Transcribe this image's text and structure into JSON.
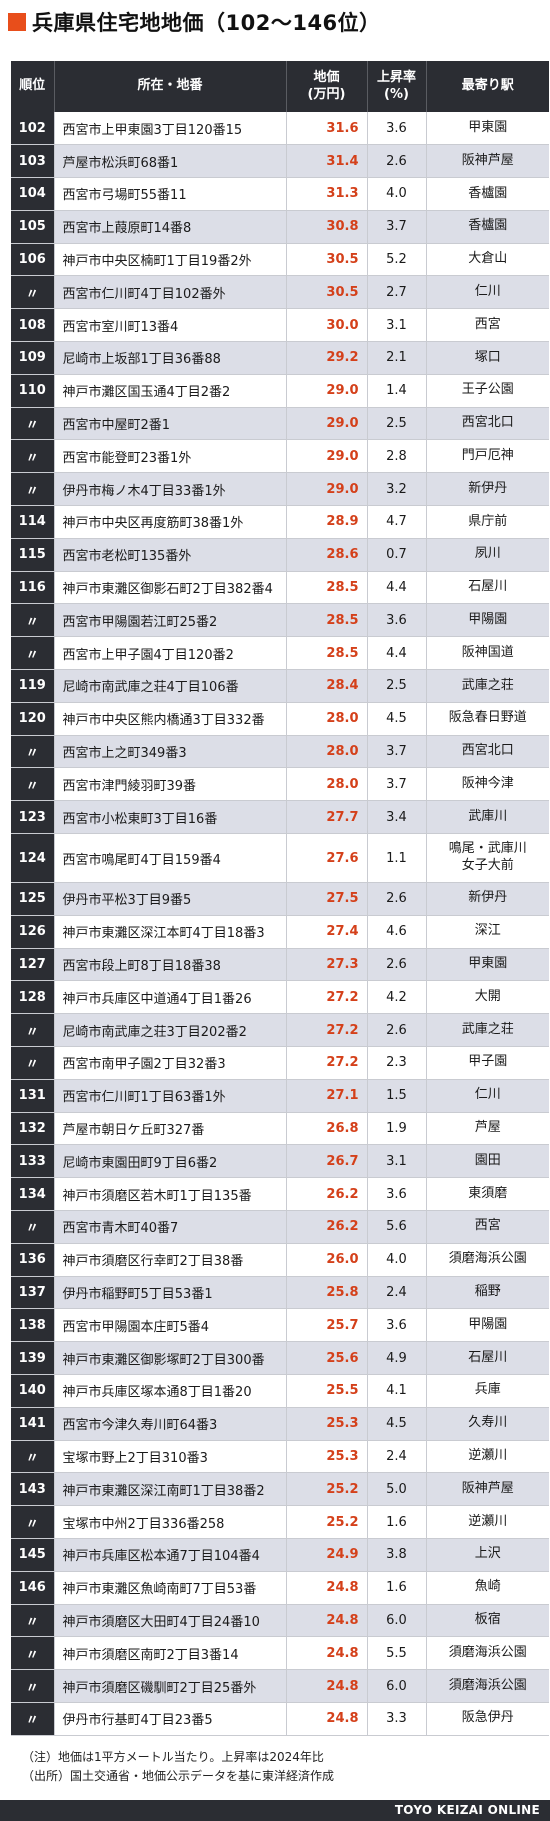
{
  "title": "兵庫県住宅地地価（102〜146位）",
  "header": {
    "rank": "順位",
    "address": "所在・地番",
    "price": "地価\n(万円)",
    "rate": "上昇率\n(%)",
    "station": "最寄り駅"
  },
  "rows": [
    {
      "rank": "102",
      "address": "西宮市上甲東園3丁目120番15",
      "price": "31.6",
      "rate": "3.6",
      "station": "甲東園"
    },
    {
      "rank": "103",
      "address": "芦屋市松浜町68番1",
      "price": "31.4",
      "rate": "2.6",
      "station": "阪神芦屋"
    },
    {
      "rank": "104",
      "address": "西宮市弓場町55番11",
      "price": "31.3",
      "rate": "4.0",
      "station": "香櫨園"
    },
    {
      "rank": "105",
      "address": "西宮市上葭原町14番8",
      "price": "30.8",
      "rate": "3.7",
      "station": "香櫨園"
    },
    {
      "rank": "106",
      "address": "神戸市中央区楠町1丁目19番2外",
      "price": "30.5",
      "rate": "5.2",
      "station": "大倉山"
    },
    {
      "rank": "〃",
      "address": "西宮市仁川町4丁目102番外",
      "price": "30.5",
      "rate": "2.7",
      "station": "仁川"
    },
    {
      "rank": "108",
      "address": "西宮市室川町13番4",
      "price": "30.0",
      "rate": "3.1",
      "station": "西宮"
    },
    {
      "rank": "109",
      "address": "尼崎市上坂部1丁目36番88",
      "price": "29.2",
      "rate": "2.1",
      "station": "塚口"
    },
    {
      "rank": "110",
      "address": "神戸市灘区国玉通4丁目2番2",
      "price": "29.0",
      "rate": "1.4",
      "station": "王子公園"
    },
    {
      "rank": "〃",
      "address": "西宮市中屋町2番1",
      "price": "29.0",
      "rate": "2.5",
      "station": "西宮北口"
    },
    {
      "rank": "〃",
      "address": "西宮市能登町23番1外",
      "price": "29.0",
      "rate": "2.8",
      "station": "門戸厄神"
    },
    {
      "rank": "〃",
      "address": "伊丹市梅ノ木4丁目33番1外",
      "price": "29.0",
      "rate": "3.2",
      "station": "新伊丹"
    },
    {
      "rank": "114",
      "address": "神戸市中央区再度筋町38番1外",
      "price": "28.9",
      "rate": "4.7",
      "station": "県庁前"
    },
    {
      "rank": "115",
      "address": "西宮市老松町135番外",
      "price": "28.6",
      "rate": "0.7",
      "station": "夙川"
    },
    {
      "rank": "116",
      "address": "神戸市東灘区御影石町2丁目382番4",
      "price": "28.5",
      "rate": "4.4",
      "station": "石屋川"
    },
    {
      "rank": "〃",
      "address": "西宮市甲陽園若江町25番2",
      "price": "28.5",
      "rate": "3.6",
      "station": "甲陽園"
    },
    {
      "rank": "〃",
      "address": "西宮市上甲子園4丁目120番2",
      "price": "28.5",
      "rate": "4.4",
      "station": "阪神国道"
    },
    {
      "rank": "119",
      "address": "尼崎市南武庫之荘4丁目106番",
      "price": "28.4",
      "rate": "2.5",
      "station": "武庫之荘"
    },
    {
      "rank": "120",
      "address": "神戸市中央区熊内橋通3丁目332番",
      "price": "28.0",
      "rate": "4.5",
      "station": "阪急春日野道"
    },
    {
      "rank": "〃",
      "address": "西宮市上之町349番3",
      "price": "28.0",
      "rate": "3.7",
      "station": "西宮北口"
    },
    {
      "rank": "〃",
      "address": "西宮市津門綾羽町39番",
      "price": "28.0",
      "rate": "3.7",
      "station": "阪神今津"
    },
    {
      "rank": "123",
      "address": "西宮市小松東町3丁目16番",
      "price": "27.7",
      "rate": "3.4",
      "station": "武庫川"
    },
    {
      "rank": "124",
      "address": "西宮市鳴尾町4丁目159番4",
      "price": "27.6",
      "rate": "1.1",
      "station": "鳴尾・武庫川\n女子大前"
    },
    {
      "rank": "125",
      "address": "伊丹市平松3丁目9番5",
      "price": "27.5",
      "rate": "2.6",
      "station": "新伊丹"
    },
    {
      "rank": "126",
      "address": "神戸市東灘区深江本町4丁目18番3",
      "price": "27.4",
      "rate": "4.6",
      "station": "深江"
    },
    {
      "rank": "127",
      "address": "西宮市段上町8丁目18番38",
      "price": "27.3",
      "rate": "2.6",
      "station": "甲東園"
    },
    {
      "rank": "128",
      "address": "神戸市兵庫区中道通4丁目1番26",
      "price": "27.2",
      "rate": "4.2",
      "station": "大開"
    },
    {
      "rank": "〃",
      "address": "尼崎市南武庫之荘3丁目202番2",
      "price": "27.2",
      "rate": "2.6",
      "station": "武庫之荘"
    },
    {
      "rank": "〃",
      "address": "西宮市南甲子園2丁目32番3",
      "price": "27.2",
      "rate": "2.3",
      "station": "甲子園"
    },
    {
      "rank": "131",
      "address": "西宮市仁川町1丁目63番1外",
      "price": "27.1",
      "rate": "1.5",
      "station": "仁川"
    },
    {
      "rank": "132",
      "address": "芦屋市朝日ケ丘町327番",
      "price": "26.8",
      "rate": "1.9",
      "station": "芦屋"
    },
    {
      "rank": "133",
      "address": "尼崎市東園田町9丁目6番2",
      "price": "26.7",
      "rate": "3.1",
      "station": "園田"
    },
    {
      "rank": "134",
      "address": "神戸市須磨区若木町1丁目135番",
      "price": "26.2",
      "rate": "3.6",
      "station": "東須磨"
    },
    {
      "rank": "〃",
      "address": "西宮市青木町40番7",
      "price": "26.2",
      "rate": "5.6",
      "station": "西宮"
    },
    {
      "rank": "136",
      "address": "神戸市須磨区行幸町2丁目38番",
      "price": "26.0",
      "rate": "4.0",
      "station": "須磨海浜公園"
    },
    {
      "rank": "137",
      "address": "伊丹市稲野町5丁目53番1",
      "price": "25.8",
      "rate": "2.4",
      "station": "稲野"
    },
    {
      "rank": "138",
      "address": "西宮市甲陽園本庄町5番4",
      "price": "25.7",
      "rate": "3.6",
      "station": "甲陽園"
    },
    {
      "rank": "139",
      "address": "神戸市東灘区御影塚町2丁目300番",
      "price": "25.6",
      "rate": "4.9",
      "station": "石屋川"
    },
    {
      "rank": "140",
      "address": "神戸市兵庫区塚本通8丁目1番20",
      "price": "25.5",
      "rate": "4.1",
      "station": "兵庫"
    },
    {
      "rank": "141",
      "address": "西宮市今津久寿川町64番3",
      "price": "25.3",
      "rate": "4.5",
      "station": "久寿川"
    },
    {
      "rank": "〃",
      "address": "宝塚市野上2丁目310番3",
      "price": "25.3",
      "rate": "2.4",
      "station": "逆瀬川"
    },
    {
      "rank": "143",
      "address": "神戸市東灘区深江南町1丁目38番2",
      "price": "25.2",
      "rate": "5.0",
      "station": "阪神芦屋"
    },
    {
      "rank": "〃",
      "address": "宝塚市中州2丁目336番258",
      "price": "25.2",
      "rate": "1.6",
      "station": "逆瀬川"
    },
    {
      "rank": "145",
      "address": "神戸市兵庫区松本通7丁目104番4",
      "price": "24.9",
      "rate": "3.8",
      "station": "上沢"
    },
    {
      "rank": "146",
      "address": "神戸市東灘区魚崎南町7丁目53番",
      "price": "24.8",
      "rate": "1.6",
      "station": "魚崎"
    },
    {
      "rank": "〃",
      "address": "神戸市須磨区大田町4丁目24番10",
      "price": "24.8",
      "rate": "6.0",
      "station": "板宿"
    },
    {
      "rank": "〃",
      "address": "神戸市須磨区南町2丁目3番14",
      "price": "24.8",
      "rate": "5.5",
      "station": "須磨海浜公園"
    },
    {
      "rank": "〃",
      "address": "神戸市須磨区磯馴町2丁目25番外",
      "price": "24.8",
      "rate": "6.0",
      "station": "須磨海浜公園"
    },
    {
      "rank": "〃",
      "address": "伊丹市行基町4丁目23番5",
      "price": "24.8",
      "rate": "3.3",
      "station": "阪急伊丹"
    }
  ],
  "notes": {
    "note1": "（注）地価は1平方メートル当たり。上昇率は2024年比",
    "note2": "（出所）国土交通省・地価公示データを基に東洋経済作成"
  },
  "footer": "TOYO KEIZAI ONLINE",
  "colors": {
    "accent": "#e84e1b",
    "header_bg": "#2b2d33",
    "price_text": "#d4401a",
    "alt_row": "#dcdee7"
  }
}
